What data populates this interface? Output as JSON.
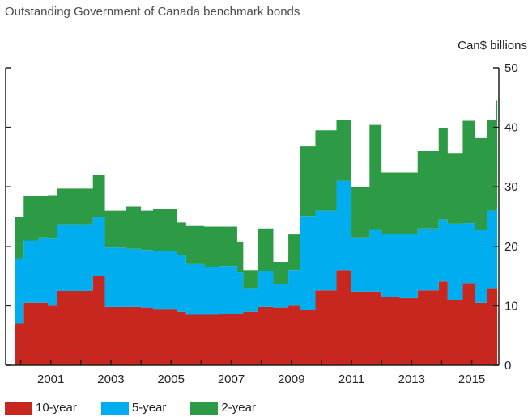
{
  "title": "Outstanding Government of Canada benchmark bonds",
  "unit_label": "Can$ billions",
  "colors": {
    "ten_year": "#c8271f",
    "five_year": "#00aeef",
    "two_year": "#2d9b45",
    "axis": "#231f20"
  },
  "chart_data": {
    "type": "area",
    "title": "Outstanding Government of Canada benchmark bonds",
    "ylabel": "Can$ billions",
    "ylim": [
      0,
      50
    ],
    "yticks": [
      0,
      10,
      20,
      30,
      40,
      50
    ],
    "xlim": [
      1999.5,
      2015.9
    ],
    "xticks": [
      2001,
      2003,
      2005,
      2007,
      2009,
      2011,
      2013,
      2015
    ],
    "legend_position": "bottom-left",
    "stacked": true,
    "x": [
      1999.8,
      2000.1,
      2000.6,
      2000.9,
      2001.2,
      2002.4,
      2002.8,
      2003.5,
      2004.0,
      2004.4,
      2005.2,
      2005.5,
      2006.1,
      2006.6,
      2007.2,
      2007.4,
      2007.9,
      2008.4,
      2008.9,
      2009.3,
      2009.8,
      2010.5,
      2011.0,
      2011.6,
      2012.0,
      2012.6,
      2013.2,
      2013.9,
      2014.2,
      2014.7,
      2015.1,
      2015.5,
      2015.8
    ],
    "series": [
      {
        "name": "10-year",
        "values": [
          7.0,
          10.5,
          10.5,
          10.0,
          12.5,
          15.0,
          9.8,
          9.8,
          9.7,
          9.5,
          9.0,
          8.5,
          8.5,
          8.7,
          8.6,
          9.0,
          9.8,
          9.7,
          10.0,
          9.3,
          12.6,
          16.0,
          12.4,
          12.4,
          11.5,
          11.3,
          12.6,
          14.1,
          11.0,
          13.8,
          10.5,
          13.0,
          13.0
        ]
      },
      {
        "name": "5-year",
        "values": [
          11.0,
          10.5,
          11.0,
          11.3,
          11.2,
          10.0,
          10.0,
          9.8,
          9.7,
          9.7,
          9.5,
          8.5,
          8.0,
          8.0,
          7.0,
          4.0,
          6.1,
          4.0,
          6.0,
          15.8,
          13.4,
          15.0,
          9.1,
          10.5,
          10.6,
          10.8,
          10.4,
          10.4,
          12.8,
          10.1,
          12.3,
          13.0,
          13.5
        ]
      },
      {
        "name": "2-year",
        "values": [
          7.0,
          7.5,
          7.0,
          7.3,
          6.0,
          7.0,
          6.2,
          7.1,
          6.6,
          7.1,
          5.5,
          6.4,
          6.8,
          6.6,
          5.2,
          3.0,
          7.1,
          3.7,
          6.0,
          11.7,
          13.5,
          10.3,
          8.4,
          17.5,
          10.3,
          10.3,
          13.0,
          15.4,
          11.9,
          17.2,
          15.4,
          15.3,
          18.0
        ]
      }
    ]
  },
  "legend": [
    {
      "key": "ten_year",
      "label": "10-year"
    },
    {
      "key": "five_year",
      "label": "5-year"
    },
    {
      "key": "two_year",
      "label": "2-year"
    }
  ]
}
